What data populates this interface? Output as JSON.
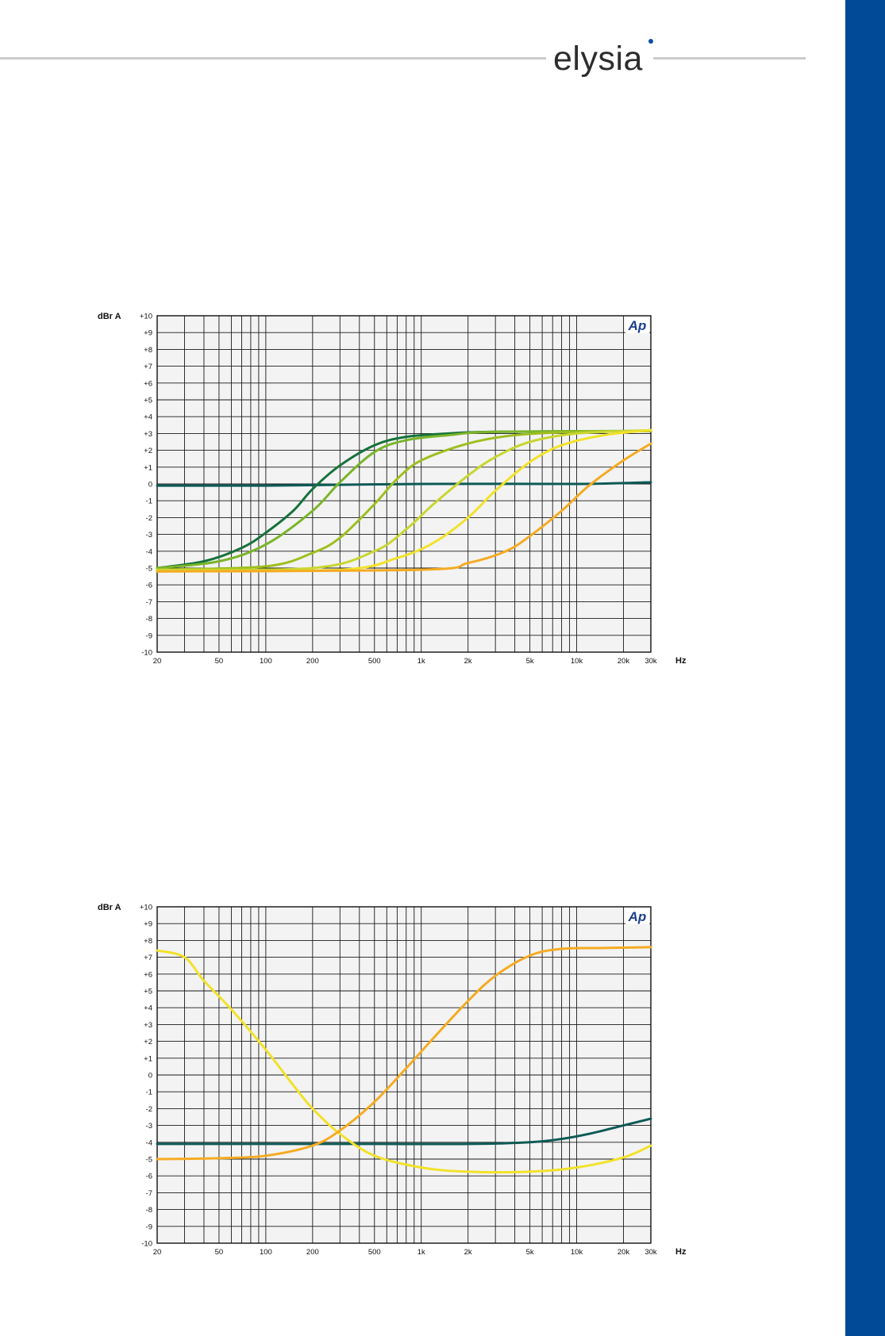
{
  "brand": {
    "logo_text": "elysia",
    "rule_color": "#cccccc",
    "sidebar_color": "#004a97",
    "dot_color": "#0a4fa3"
  },
  "chart_data": [
    {
      "type": "line",
      "ylabel": "dBr A",
      "xlabel": "Hz",
      "badge": "Ap",
      "xscale": "log",
      "xlim": [
        20,
        30000
      ],
      "ylim": [
        -10,
        10
      ],
      "grid": true,
      "x_ticks": [
        20,
        50,
        100,
        200,
        500,
        1000,
        2000,
        5000,
        10000,
        20000,
        30000
      ],
      "x_tick_labels": [
        "20",
        "50",
        "100",
        "200",
        "500",
        "1k",
        "2k",
        "5k",
        "10k",
        "20k",
        "30k"
      ],
      "y_ticks": [
        10,
        9,
        8,
        7,
        6,
        5,
        4,
        3,
        2,
        1,
        0,
        -1,
        -2,
        -3,
        -4,
        -5,
        -6,
        -7,
        -8,
        -9,
        -10
      ],
      "y_tick_labels": [
        "+10",
        "+9",
        "+8",
        "+7",
        "+6",
        "+5",
        "+4",
        "+3",
        "+2",
        "+1",
        "0",
        "-1",
        "-2",
        "-3",
        "-4",
        "-5",
        "-6",
        "-7",
        "-8",
        "-9",
        "-10"
      ],
      "series": [
        {
          "color": "#0d5a55",
          "points": [
            [
              20,
              -0.1
            ],
            [
              100,
              -0.1
            ],
            [
              1000,
              0
            ],
            [
              10000,
              0
            ],
            [
              30000,
              0.1
            ]
          ]
        },
        {
          "color": "#17723b",
          "points": [
            [
              20,
              -5.0
            ],
            [
              40,
              -4.6
            ],
            [
              70,
              -3.8
            ],
            [
              100,
              -2.9
            ],
            [
              150,
              -1.6
            ],
            [
              200,
              -0.3
            ],
            [
              300,
              1.1
            ],
            [
              500,
              2.3
            ],
            [
              800,
              2.8
            ],
            [
              1500,
              3.0
            ],
            [
              3000,
              3.1
            ],
            [
              30000,
              3.15
            ]
          ]
        },
        {
          "color": "#7ab52a",
          "points": [
            [
              20,
              -5.0
            ],
            [
              50,
              -4.6
            ],
            [
              100,
              -3.6
            ],
            [
              200,
              -1.6
            ],
            [
              300,
              0.1
            ],
            [
              500,
              1.9
            ],
            [
              800,
              2.6
            ],
            [
              1500,
              2.9
            ],
            [
              3000,
              3.1
            ],
            [
              30000,
              3.15
            ]
          ]
        },
        {
          "color": "#9ebf1f",
          "points": [
            [
              20,
              -5.1
            ],
            [
              100,
              -4.9
            ],
            [
              200,
              -4.1
            ],
            [
              300,
              -3.2
            ],
            [
              500,
              -1.2
            ],
            [
              700,
              0.3
            ],
            [
              1000,
              1.4
            ],
            [
              2000,
              2.4
            ],
            [
              4000,
              2.9
            ],
            [
              10000,
              3.1
            ],
            [
              30000,
              3.15
            ]
          ]
        },
        {
          "color": "#c9d630",
          "points": [
            [
              20,
              -5.1
            ],
            [
              200,
              -5.0
            ],
            [
              500,
              -4.0
            ],
            [
              800,
              -2.7
            ],
            [
              1200,
              -1.2
            ],
            [
              2000,
              0.5
            ],
            [
              3000,
              1.6
            ],
            [
              5000,
              2.5
            ],
            [
              10000,
              3.0
            ],
            [
              30000,
              3.2
            ]
          ]
        },
        {
          "color": "#f2e22a",
          "points": [
            [
              20,
              -5.2
            ],
            [
              300,
              -5.1
            ],
            [
              700,
              -4.4
            ],
            [
              1200,
              -3.5
            ],
            [
              2000,
              -2.0
            ],
            [
              3000,
              -0.4
            ],
            [
              5000,
              1.3
            ],
            [
              8000,
              2.3
            ],
            [
              15000,
              2.9
            ],
            [
              30000,
              3.2
            ]
          ]
        },
        {
          "color": "#f5ab22",
          "points": [
            [
              20,
              -5.2
            ],
            [
              1000,
              -5.1
            ],
            [
              2000,
              -4.7
            ],
            [
              3500,
              -4.0
            ],
            [
              5000,
              -3.1
            ],
            [
              8000,
              -1.6
            ],
            [
              12000,
              -0.1
            ],
            [
              20000,
              1.4
            ],
            [
              30000,
              2.4
            ]
          ]
        }
      ]
    },
    {
      "type": "line",
      "ylabel": "dBr A",
      "xlabel": "Hz",
      "badge": "Ap",
      "xscale": "log",
      "xlim": [
        20,
        30000
      ],
      "ylim": [
        -10,
        10
      ],
      "grid": true,
      "x_ticks": [
        20,
        50,
        100,
        200,
        500,
        1000,
        2000,
        5000,
        10000,
        20000,
        30000
      ],
      "x_tick_labels": [
        "20",
        "50",
        "100",
        "200",
        "500",
        "1k",
        "2k",
        "5k",
        "10k",
        "20k",
        "30k"
      ],
      "y_ticks": [
        10,
        9,
        8,
        7,
        6,
        5,
        4,
        3,
        2,
        1,
        0,
        -1,
        -2,
        -3,
        -4,
        -5,
        -6,
        -7,
        -8,
        -9,
        -10
      ],
      "y_tick_labels": [
        "+10",
        "+9",
        "+8",
        "+7",
        "+6",
        "+5",
        "+4",
        "+3",
        "+2",
        "+1",
        "0",
        "-1",
        "-2",
        "-3",
        "-4",
        "-5",
        "-6",
        "-7",
        "-8",
        "-9",
        "-10"
      ],
      "series": [
        {
          "color": "#0d5a55",
          "points": [
            [
              20,
              -4.1
            ],
            [
              500,
              -4.1
            ],
            [
              2000,
              -4.1
            ],
            [
              5000,
              -4.0
            ],
            [
              8000,
              -3.8
            ],
            [
              12000,
              -3.5
            ],
            [
              20000,
              -3.0
            ],
            [
              30000,
              -2.6
            ]
          ]
        },
        {
          "color": "#f2e22a",
          "points": [
            [
              20,
              7.4
            ],
            [
              30,
              7.0
            ],
            [
              40,
              5.6
            ],
            [
              60,
              3.9
            ],
            [
              100,
              1.5
            ],
            [
              150,
              -0.6
            ],
            [
              200,
              -2.0
            ],
            [
              300,
              -3.5
            ],
            [
              500,
              -4.8
            ],
            [
              1000,
              -5.5
            ],
            [
              2000,
              -5.75
            ],
            [
              5000,
              -5.75
            ],
            [
              10000,
              -5.5
            ],
            [
              20000,
              -4.9
            ],
            [
              30000,
              -4.2
            ]
          ]
        },
        {
          "color": "#f5ab22",
          "points": [
            [
              20,
              -5.0
            ],
            [
              50,
              -4.95
            ],
            [
              100,
              -4.8
            ],
            [
              200,
              -4.2
            ],
            [
              300,
              -3.3
            ],
            [
              500,
              -1.6
            ],
            [
              800,
              0.4
            ],
            [
              1200,
              2.2
            ],
            [
              2000,
              4.4
            ],
            [
              3000,
              5.9
            ],
            [
              5000,
              7.1
            ],
            [
              8000,
              7.5
            ],
            [
              15000,
              7.55
            ],
            [
              30000,
              7.6
            ]
          ]
        }
      ]
    }
  ]
}
